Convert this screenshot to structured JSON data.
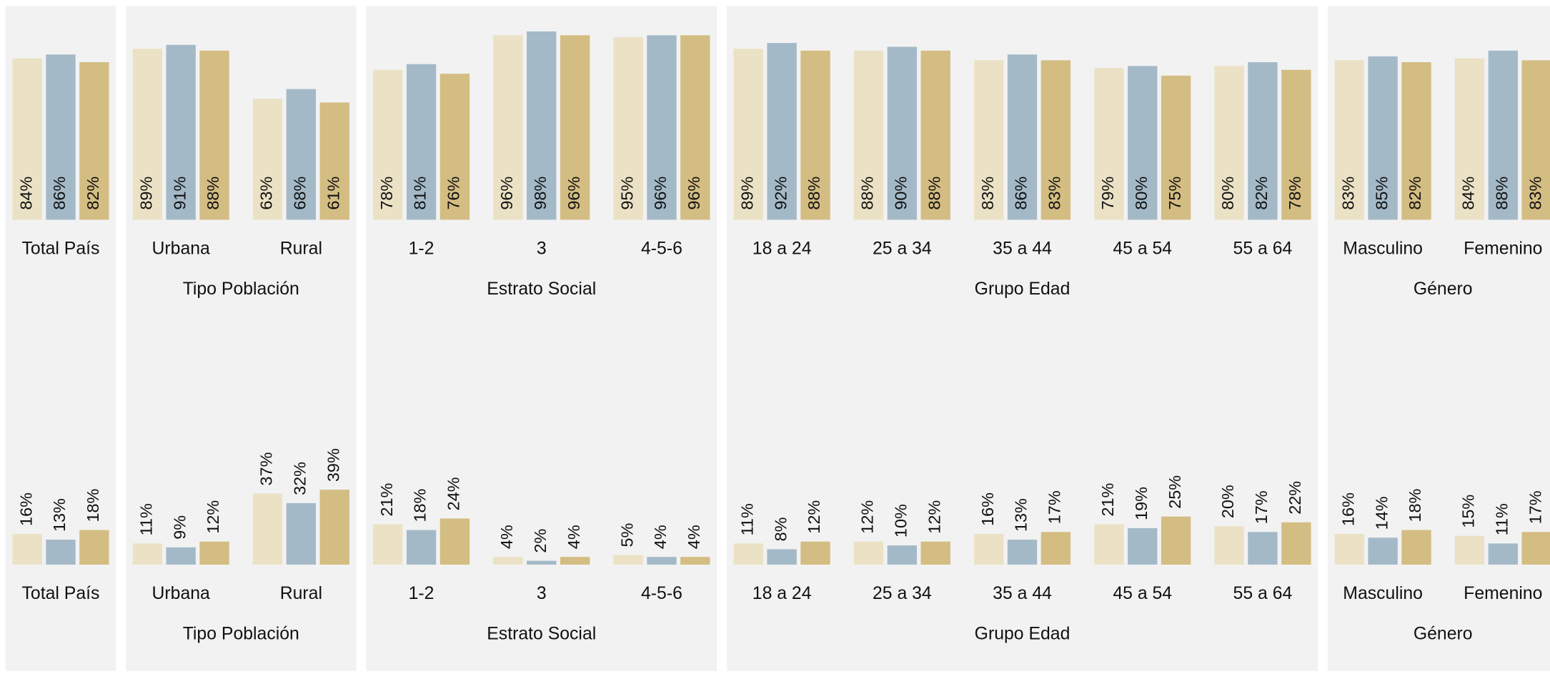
{
  "chart_data": [
    {
      "type": "bar",
      "panels": [
        {
          "categories": [
            "Total País"
          ],
          "series": [
            {
              "color": "#ebe1c5",
              "values": [
                84
              ],
              "value_labels": [
                "84%"
              ]
            },
            {
              "color": "#a4b9c8",
              "values": [
                86
              ],
              "value_labels": [
                "86%"
              ]
            },
            {
              "color": "#d4bd82",
              "values": [
                82
              ],
              "value_labels": [
                "82%"
              ]
            }
          ]
        },
        {
          "title": "Tipo Población",
          "categories": [
            "Urbana",
            "Rural"
          ],
          "series": [
            {
              "color": "#ebe1c5",
              "values": [
                89,
                63
              ],
              "value_labels": [
                "89%",
                "63%"
              ]
            },
            {
              "color": "#a4b9c8",
              "values": [
                91,
                68
              ],
              "value_labels": [
                "91%",
                "68%"
              ]
            },
            {
              "color": "#d4bd82",
              "values": [
                88,
                61
              ],
              "value_labels": [
                "88%",
                "61%"
              ]
            }
          ]
        },
        {
          "title": "Estrato Social",
          "categories": [
            "1-2",
            "3",
            "4-5-6"
          ],
          "series": [
            {
              "color": "#ebe1c5",
              "values": [
                78,
                96,
                95
              ],
              "value_labels": [
                "78%",
                "96%",
                "95%"
              ]
            },
            {
              "color": "#a4b9c8",
              "values": [
                81,
                98,
                96
              ],
              "value_labels": [
                "81%",
                "98%",
                "96%"
              ]
            },
            {
              "color": "#d4bd82",
              "values": [
                76,
                96,
                96
              ],
              "value_labels": [
                "76%",
                "96%",
                "96%"
              ]
            }
          ]
        },
        {
          "title": "Grupo Edad",
          "categories": [
            "18 a 24",
            "25 a 34",
            "35 a 44",
            "45 a 54",
            "55 a 64"
          ],
          "series": [
            {
              "color": "#ebe1c5",
              "values": [
                89,
                88,
                83,
                79,
                80
              ],
              "value_labels": [
                "89%",
                "88%",
                "83%",
                "79%",
                "80%"
              ]
            },
            {
              "color": "#a4b9c8",
              "values": [
                92,
                90,
                86,
                80,
                82
              ],
              "value_labels": [
                "92%",
                "90%",
                "86%",
                "80%",
                "82%"
              ]
            },
            {
              "color": "#d4bd82",
              "values": [
                88,
                88,
                83,
                75,
                78
              ],
              "value_labels": [
                "88%",
                "88%",
                "83%",
                "75%",
                "78%"
              ]
            }
          ]
        },
        {
          "title": "Género",
          "categories": [
            "Masculino",
            "Femenino"
          ],
          "series": [
            {
              "color": "#ebe1c5",
              "values": [
                83,
                84
              ],
              "value_labels": [
                "83%",
                "84%"
              ]
            },
            {
              "color": "#a4b9c8",
              "values": [
                85,
                88
              ],
              "value_labels": [
                "85%",
                "88%"
              ]
            },
            {
              "color": "#d4bd82",
              "values": [
                82,
                83
              ],
              "value_labels": [
                "82%",
                "83%"
              ]
            }
          ]
        }
      ]
    },
    {
      "type": "bar",
      "panels": [
        {
          "categories": [
            "Total País"
          ],
          "series": [
            {
              "color": "#ebe1c5",
              "values": [
                16
              ],
              "value_labels": [
                "16%"
              ]
            },
            {
              "color": "#a4b9c8",
              "values": [
                13
              ],
              "value_labels": [
                "13%"
              ]
            },
            {
              "color": "#d4bd82",
              "values": [
                18
              ],
              "value_labels": [
                "18%"
              ]
            }
          ]
        },
        {
          "title": "Tipo Población",
          "categories": [
            "Urbana",
            "Rural"
          ],
          "series": [
            {
              "color": "#ebe1c5",
              "values": [
                11,
                37
              ],
              "value_labels": [
                "11%",
                "37%"
              ]
            },
            {
              "color": "#a4b9c8",
              "values": [
                9,
                32
              ],
              "value_labels": [
                "9%",
                "32%"
              ]
            },
            {
              "color": "#d4bd82",
              "values": [
                12,
                39
              ],
              "value_labels": [
                "12%",
                "39%"
              ]
            }
          ]
        },
        {
          "title": "Estrato Social",
          "categories": [
            "1-2",
            "3",
            "4-5-6"
          ],
          "series": [
            {
              "color": "#ebe1c5",
              "values": [
                21,
                4,
                5
              ],
              "value_labels": [
                "21%",
                "4%",
                "5%"
              ]
            },
            {
              "color": "#a4b9c8",
              "values": [
                18,
                2,
                4
              ],
              "value_labels": [
                "18%",
                "2%",
                "4%"
              ]
            },
            {
              "color": "#d4bd82",
              "values": [
                24,
                4,
                4
              ],
              "value_labels": [
                "24%",
                "4%",
                "4%"
              ]
            }
          ]
        },
        {
          "title": "Grupo Edad",
          "categories": [
            "18 a 24",
            "25 a 34",
            "35 a 44",
            "45 a 54",
            "55 a 64"
          ],
          "series": [
            {
              "color": "#ebe1c5",
              "values": [
                11,
                12,
                16,
                21,
                20
              ],
              "value_labels": [
                "11%",
                "12%",
                "16%",
                "21%",
                "20%"
              ]
            },
            {
              "color": "#a4b9c8",
              "values": [
                8,
                10,
                13,
                19,
                17
              ],
              "value_labels": [
                "8%",
                "10%",
                "13%",
                "19%",
                "17%"
              ]
            },
            {
              "color": "#d4bd82",
              "values": [
                12,
                12,
                17,
                25,
                22
              ],
              "value_labels": [
                "12%",
                "12%",
                "17%",
                "25%",
                "22%"
              ]
            }
          ]
        },
        {
          "title": "Género",
          "categories": [
            "Masculino",
            "Femenino"
          ],
          "series": [
            {
              "color": "#ebe1c5",
              "values": [
                16,
                15
              ],
              "value_labels": [
                "16%",
                "15%"
              ]
            },
            {
              "color": "#a4b9c8",
              "values": [
                14,
                11
              ],
              "value_labels": [
                "14%",
                "11%"
              ]
            },
            {
              "color": "#d4bd82",
              "values": [
                18,
                17
              ],
              "value_labels": [
                "18%",
                "17%"
              ]
            }
          ]
        }
      ]
    }
  ]
}
